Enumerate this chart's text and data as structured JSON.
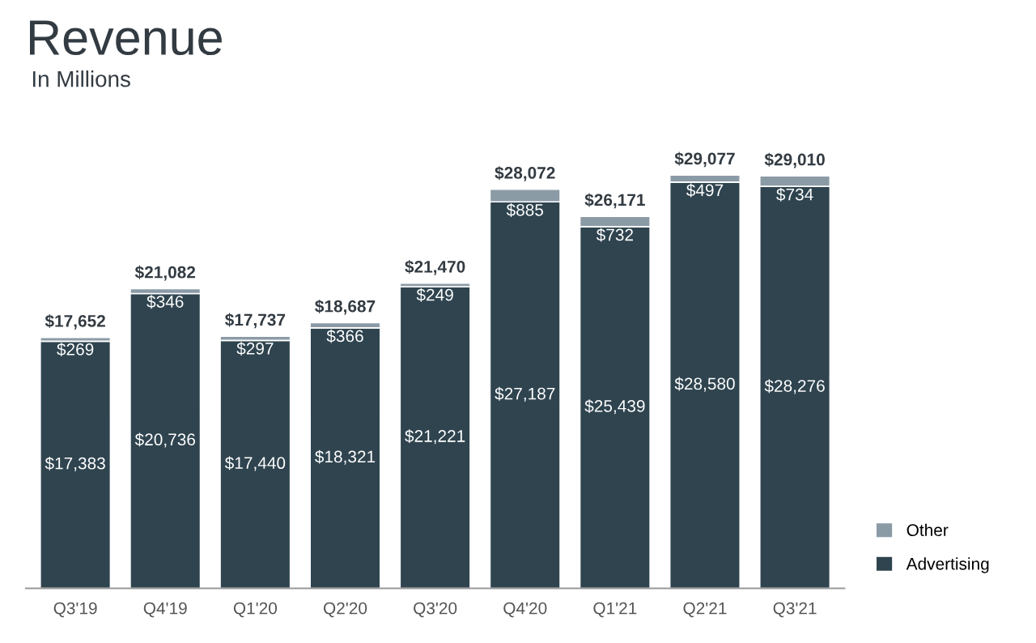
{
  "chart_data": {
    "type": "bar",
    "title": "Revenue",
    "subtitle": "In Millions",
    "stacked": true,
    "legend": "bottom right",
    "categories": [
      "Q3'19",
      "Q4'19",
      "Q1'20",
      "Q2'20",
      "Q3'20",
      "Q4'20",
      "Q1'21",
      "Q2'21",
      "Q3'21"
    ],
    "series": [
      {
        "name": "Advertising",
        "color": "#2f444f",
        "values": [
          17383,
          20736,
          17440,
          18321,
          21221,
          27187,
          25439,
          28580,
          28276
        ],
        "value_labels": [
          "$17,383",
          "$20,736",
          "$17,440",
          "$18,321",
          "$21,221",
          "$27,187",
          "$25,439",
          "$28,580",
          "$28,276"
        ]
      },
      {
        "name": "Other",
        "color": "#8b9ba6",
        "values": [
          269,
          346,
          297,
          366,
          249,
          885,
          732,
          497,
          734
        ],
        "value_labels": [
          "$269",
          "$346",
          "$297",
          "$366",
          "$249",
          "$885",
          "$732",
          "$497",
          "$734"
        ]
      }
    ],
    "totals": [
      "$17,652",
      "$21,082",
      "$17,737",
      "$18,687",
      "$21,470",
      "$28,072",
      "$26,171",
      "$29,077",
      "$29,010"
    ]
  }
}
